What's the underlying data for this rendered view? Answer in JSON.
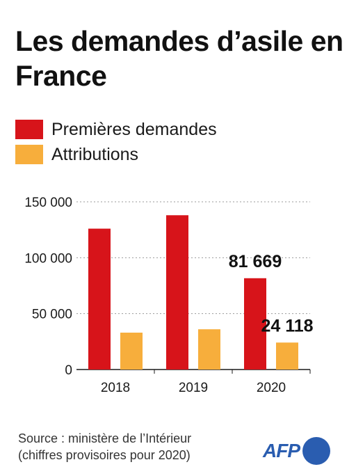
{
  "title": "Les demandes d’asile en France",
  "legend": [
    {
      "label": "Premières demandes",
      "color": "#d7141a"
    },
    {
      "label": "Attributions",
      "color": "#f7ae3c"
    }
  ],
  "chart_data": {
    "type": "bar",
    "categories": [
      "2018",
      "2019",
      "2020"
    ],
    "series": [
      {
        "name": "Premières demandes",
        "values": [
          126000,
          138000,
          81669
        ],
        "color": "#d7141a"
      },
      {
        "name": "Attributions",
        "values": [
          33000,
          36000,
          24118
        ],
        "color": "#f7ae3c"
      }
    ],
    "ylim": [
      0,
      150000
    ],
    "yticks": [
      0,
      50000,
      100000,
      150000
    ],
    "ytick_labels": [
      "0",
      "50 000",
      "100 000",
      "150 000"
    ],
    "data_labels": [
      {
        "series": 0,
        "index": 2,
        "text": "81 669"
      },
      {
        "series": 1,
        "index": 2,
        "text": "24 118"
      }
    ],
    "grid": true
  },
  "source": {
    "line1": "Source : ministère de l’Intérieur",
    "line2": "(chiffres provisoires pour 2020)"
  },
  "logo": {
    "text": "AFP",
    "color": "#2a5db0"
  }
}
